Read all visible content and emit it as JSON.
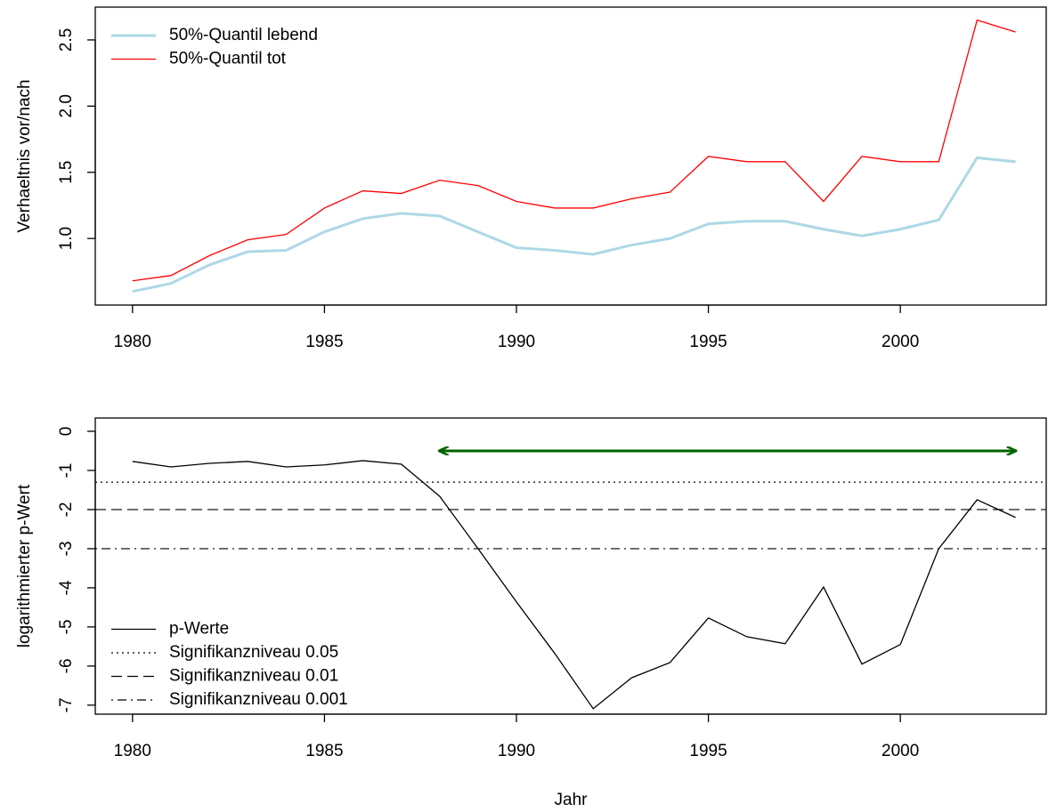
{
  "chart_data": [
    {
      "type": "line",
      "y_label": "Verhaeltnis vor/nach",
      "x": [
        1980,
        1981,
        1982,
        1983,
        1984,
        1985,
        1986,
        1987,
        1988,
        1989,
        1990,
        1991,
        1992,
        1993,
        1994,
        1995,
        1996,
        1997,
        1998,
        1999,
        2000,
        2001,
        2002,
        2003
      ],
      "series": [
        {
          "name": "50%-Quantil lebend",
          "color": "#add8e6",
          "width": 3,
          "values": [
            0.6,
            0.66,
            0.8,
            0.9,
            0.91,
            1.05,
            1.15,
            1.19,
            1.17,
            1.05,
            0.93,
            0.91,
            0.88,
            0.95,
            1.0,
            1.11,
            1.13,
            1.13,
            1.07,
            1.02,
            1.07,
            1.14,
            1.61,
            1.58
          ]
        },
        {
          "name": "50%-Quantil tot",
          "color": "#ff0000",
          "width": 1.3,
          "values": [
            0.68,
            0.72,
            0.87,
            0.99,
            1.03,
            1.23,
            1.36,
            1.34,
            1.44,
            1.4,
            1.28,
            1.23,
            1.23,
            1.3,
            1.35,
            1.62,
            1.58,
            1.58,
            1.28,
            1.62,
            1.58,
            1.58,
            2.65,
            2.56
          ]
        }
      ],
      "xlim": [
        1979.03,
        2003.8
      ],
      "xticks": [
        1980,
        1985,
        1990,
        1995,
        2000
      ],
      "ylim": [
        0.497,
        2.748
      ],
      "yticks": [
        {
          "value": 1,
          "label": "1.0"
        },
        {
          "value": 1.5,
          "label": "1.5"
        },
        {
          "value": 2,
          "label": "2.0"
        },
        {
          "value": 2.5,
          "label": "2.5"
        }
      ],
      "legend": "topleft"
    },
    {
      "type": "line",
      "y_label": "logarithmierter p-Wert",
      "x_label": "Jahr",
      "x": [
        1980,
        1981,
        1982,
        1983,
        1984,
        1985,
        1986,
        1987,
        1988,
        1989,
        1990,
        1991,
        1992,
        1993,
        1994,
        1995,
        1996,
        1997,
        1998,
        1999,
        2000,
        2001,
        2002,
        2003
      ],
      "series": [
        {
          "name": "p-Werte",
          "color": "#000000",
          "width": 1.3,
          "values": [
            -0.77,
            -0.91,
            -0.82,
            -0.77,
            -0.91,
            -0.86,
            -0.75,
            -0.84,
            -1.66,
            -3.0,
            -4.36,
            -5.68,
            -7.09,
            -6.3,
            -5.91,
            -4.77,
            -5.25,
            -5.43,
            -3.98,
            -5.95,
            -5.45,
            -3.0,
            -1.75,
            -2.2
          ]
        }
      ],
      "hlines": [
        {
          "name": "Signifikanzniveau 0.05",
          "value": -1.3,
          "dash": "dotted"
        },
        {
          "name": "Signifikanzniveau 0.01",
          "value": -2,
          "dash": "dashed"
        },
        {
          "name": "Signifikanzniveau 0.001",
          "value": -3,
          "dash": "dotdash"
        }
      ],
      "arrow": {
        "x": [
          1988,
          2003
        ],
        "y": -0.5,
        "color": "#006400"
      },
      "xlim": [
        1979.03,
        2003.8
      ],
      "xticks": [
        1980,
        1985,
        1990,
        1995,
        2000
      ],
      "ylim": [
        -7.23,
        0.34
      ],
      "yticks": [
        -7,
        -6,
        -5,
        -4,
        -3,
        -2,
        -1,
        0
      ],
      "legend": "bottomleft"
    }
  ]
}
